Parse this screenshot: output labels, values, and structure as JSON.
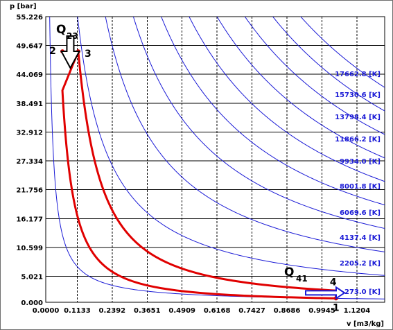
{
  "chart_data": {
    "type": "line",
    "title": "",
    "ylabel": "p [bar]",
    "xlabel": "v [m3/kg]",
    "xlim": [
      0.0,
      1.2204
    ],
    "ylim": [
      0.0,
      55.226
    ],
    "x_ticks": [
      "0.0000",
      "0.1133",
      "0.2392",
      "0.3651",
      "0.4909",
      "0.6168",
      "0.7427",
      "0.8686",
      "0.9945",
      "1.1204"
    ],
    "y_ticks": [
      "55.226",
      "49.647",
      "44.069",
      "38.491",
      "32.912",
      "27.334",
      "21.756",
      "16.177",
      "10.599",
      "5.021",
      "0.000"
    ],
    "grid": true,
    "gas_constant_R": 0.287,
    "isotherms": [
      {
        "label": "273.0 [K]",
        "T": 273.0
      },
      {
        "label": "2205.2 [K]",
        "T": 2205.2
      },
      {
        "label": "4137.4 [K]",
        "T": 4137.4
      },
      {
        "label": "6069.6 [K]",
        "T": 6069.6
      },
      {
        "label": "8001.8 [K]",
        "T": 8001.8
      },
      {
        "label": "9934.0 [K]",
        "T": 9934.0
      },
      {
        "label": "11866.2 [K]",
        "T": 11866.2
      },
      {
        "label": "13798.4 [K]",
        "T": 13798.4
      },
      {
        "label": "15730.6 [K]",
        "T": 15730.6
      },
      {
        "label": "17662.8 [K]",
        "T": 17662.8
      }
    ],
    "cycle_points": [
      {
        "label": "1",
        "v": 1.045,
        "p": 0.75
      },
      {
        "label": "2",
        "v": 0.06,
        "p": 48.5
      },
      {
        "label": "3",
        "v": 0.117,
        "p": 48.5
      },
      {
        "label": "4",
        "v": 1.045,
        "p": 1.95
      }
    ],
    "heat_labels": [
      {
        "label": "Q",
        "sub": "23"
      },
      {
        "label": "Q",
        "sub": "41"
      }
    ],
    "colors": {
      "isotherm": "#1a1ad6",
      "cycle": "#e00000",
      "grid": "#000000"
    }
  }
}
